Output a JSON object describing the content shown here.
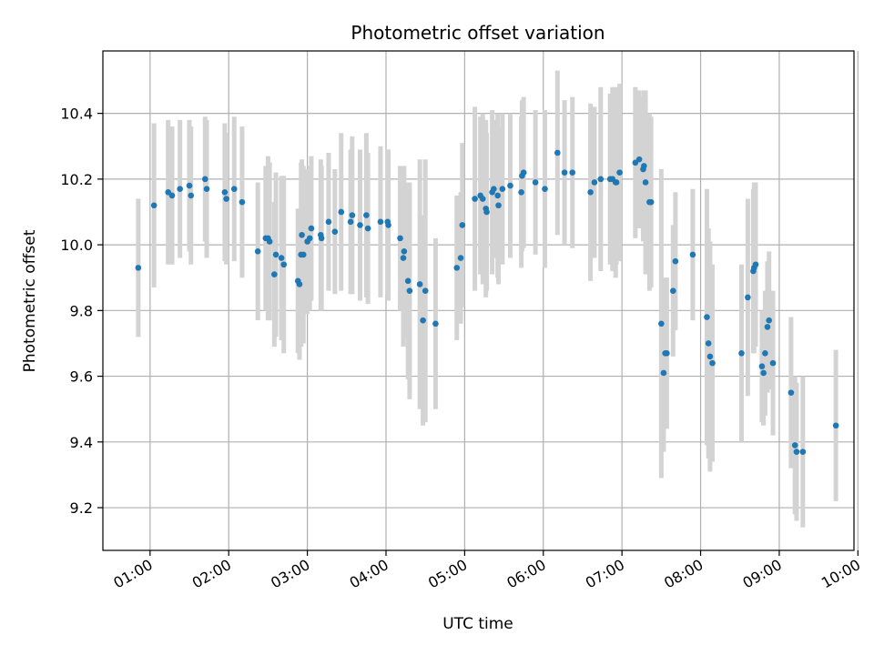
{
  "chart_data": {
    "type": "scatter",
    "title": "Photometric offset variation",
    "xlabel": "UTC time",
    "ylabel": "Photometric offset",
    "x_unit": "hours UTC",
    "xlim": [
      0.4,
      9.95
    ],
    "ylim": [
      9.07,
      10.59
    ],
    "x_ticks": [
      1,
      2,
      3,
      4,
      5,
      6,
      7,
      8,
      9,
      10
    ],
    "x_tick_labels": [
      "01:00",
      "02:00",
      "03:00",
      "04:00",
      "05:00",
      "06:00",
      "07:00",
      "08:00",
      "09:00",
      "10:00"
    ],
    "y_ticks": [
      9.2,
      9.4,
      9.6,
      9.8,
      10.0,
      10.2,
      10.4
    ],
    "y_tick_labels": [
      "9.2",
      "9.4",
      "9.6",
      "9.8",
      "10.0",
      "10.2",
      "10.4"
    ],
    "grid": true,
    "point_color": "#1f77b4",
    "errorbar_color": "#d3d3d3",
    "series": [
      {
        "x": [
          0.85,
          1.05,
          1.23,
          1.28,
          1.38,
          1.5,
          1.52,
          1.7,
          1.72,
          1.95,
          1.97,
          2.07,
          2.17,
          2.37,
          2.47,
          2.5,
          2.52,
          2.58,
          2.6,
          2.67,
          2.7,
          2.88,
          2.9,
          2.92,
          2.93,
          2.95,
          3.0,
          3.03,
          3.05,
          3.17,
          3.18,
          3.27,
          3.35,
          3.43,
          3.55,
          3.57,
          3.67,
          3.75,
          3.77,
          3.93,
          4.02,
          4.03,
          4.18,
          4.22,
          4.23,
          4.28,
          4.3,
          4.43,
          4.47,
          4.5,
          4.63,
          4.9,
          4.95,
          4.97,
          5.13,
          5.2,
          5.23,
          5.27,
          5.28,
          5.35,
          5.37,
          5.42,
          5.43,
          5.48,
          5.58,
          5.72,
          5.73,
          5.75,
          5.9,
          6.02,
          6.18,
          6.27,
          6.37,
          6.6,
          6.65,
          6.73,
          6.85,
          6.88,
          6.92,
          6.93,
          6.97,
          7.17,
          7.22,
          7.27,
          7.28,
          7.3,
          7.35,
          7.37,
          7.5,
          7.53,
          7.55,
          7.57,
          7.65,
          7.68,
          7.9,
          8.08,
          8.1,
          8.12,
          8.15,
          8.52,
          8.6,
          8.67,
          8.68,
          8.7,
          8.78,
          8.8,
          8.82,
          8.85,
          8.87,
          8.92,
          9.15,
          9.2,
          9.22,
          9.3,
          9.72
        ],
        "y": [
          9.93,
          10.12,
          10.16,
          10.15,
          10.17,
          10.18,
          10.15,
          10.2,
          10.17,
          10.16,
          10.14,
          10.17,
          10.13,
          9.98,
          10.02,
          10.02,
          10.01,
          9.91,
          9.97,
          9.96,
          9.94,
          9.89,
          9.88,
          9.97,
          10.03,
          9.97,
          10.01,
          10.02,
          10.05,
          10.03,
          10.02,
          10.07,
          10.04,
          10.1,
          10.07,
          10.09,
          10.06,
          10.09,
          10.05,
          10.07,
          10.07,
          10.06,
          10.02,
          9.96,
          9.98,
          9.89,
          9.86,
          9.88,
          9.77,
          9.86,
          9.76,
          9.93,
          9.96,
          10.06,
          10.14,
          10.15,
          10.14,
          10.11,
          10.1,
          10.16,
          10.17,
          10.15,
          10.12,
          10.17,
          10.18,
          10.16,
          10.21,
          10.22,
          10.19,
          10.17,
          10.28,
          10.22,
          10.22,
          10.16,
          10.19,
          10.2,
          10.2,
          10.2,
          10.19,
          10.19,
          10.22,
          10.25,
          10.26,
          10.23,
          10.24,
          10.19,
          10.13,
          10.13,
          9.76,
          9.61,
          9.67,
          9.67,
          9.86,
          9.95,
          9.97,
          9.78,
          9.7,
          9.66,
          9.64,
          9.67,
          9.84,
          9.92,
          9.93,
          9.94,
          9.63,
          9.61,
          9.67,
          9.75,
          9.77,
          9.64,
          9.55,
          9.39,
          9.37,
          9.37,
          9.45
        ],
        "err": [
          0.21,
          0.25,
          0.22,
          0.21,
          0.21,
          0.2,
          0.21,
          0.19,
          0.21,
          0.21,
          0.2,
          0.22,
          0.23,
          0.21,
          0.22,
          0.25,
          0.24,
          0.22,
          0.25,
          0.25,
          0.27,
          0.22,
          0.23,
          0.28,
          0.23,
          0.27,
          0.22,
          0.22,
          0.22,
          0.23,
          0.22,
          0.21,
          0.19,
          0.24,
          0.22,
          0.24,
          0.23,
          0.25,
          0.23,
          0.23,
          0.22,
          0.23,
          0.22,
          0.27,
          0.26,
          0.3,
          0.33,
          0.38,
          0.32,
          0.4,
          0.26,
          0.22,
          0.2,
          0.25,
          0.28,
          0.24,
          0.26,
          0.27,
          0.24,
          0.25,
          0.21,
          0.25,
          0.24,
          0.23,
          0.22,
          0.23,
          0.23,
          0.23,
          0.22,
          0.24,
          0.25,
          0.22,
          0.23,
          0.27,
          0.23,
          0.28,
          0.26,
          0.28,
          0.29,
          0.25,
          0.27,
          0.23,
          0.21,
          0.22,
          0.23,
          0.28,
          0.27,
          0.26,
          0.47,
          0.24,
          0.23,
          0.23,
          0.2,
          0.21,
          0.2,
          0.39,
          0.35,
          0.35,
          0.3,
          0.27,
          0.3,
          0.25,
          0.26,
          0.25,
          0.17,
          0.16,
          0.19,
          0.2,
          0.21,
          0.22,
          0.23,
          0.21,
          0.21,
          0.23,
          0.23
        ]
      }
    ]
  }
}
